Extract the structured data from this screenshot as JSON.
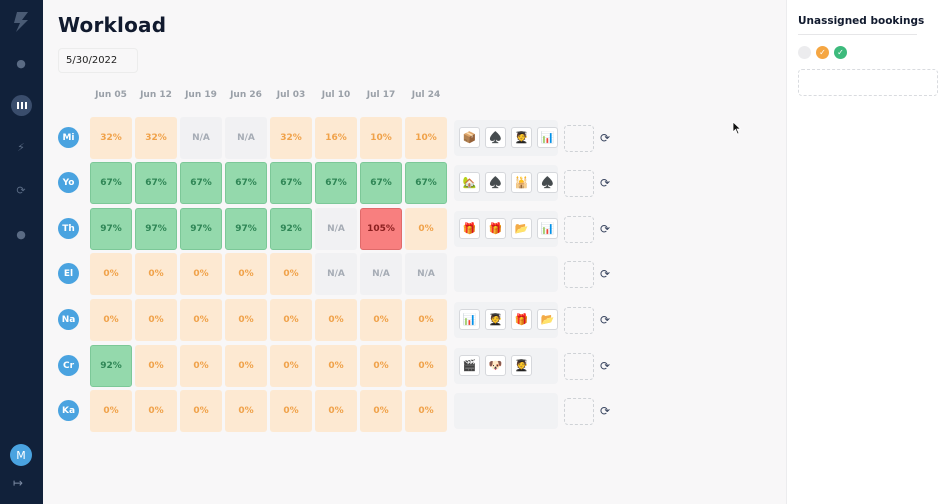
{
  "title": "Workload",
  "date": "5/30/2022",
  "weeks": [
    "Jun 05",
    "Jun 12",
    "Jun 19",
    "Jun 26",
    "Jul 03",
    "Jul 10",
    "Jul 17",
    "Jul 24"
  ],
  "rows": [
    {
      "initials": "Mi",
      "cells": [
        "32%",
        "32%",
        "N/A",
        "N/A",
        "32%",
        "16%",
        "10%",
        "10%"
      ],
      "status": [
        "orange",
        "orange",
        "gray",
        "gray",
        "orange",
        "orange",
        "orange",
        "orange"
      ],
      "bookings": [
        "📦",
        "♠️",
        "🧑‍🎓",
        "📊"
      ]
    },
    {
      "initials": "Yo",
      "cells": [
        "67%",
        "67%",
        "67%",
        "67%",
        "67%",
        "67%",
        "67%",
        "67%"
      ],
      "status": [
        "green",
        "green",
        "green",
        "green",
        "green",
        "green",
        "green",
        "green"
      ],
      "bookings": [
        "🏡",
        "♠️",
        "🕌",
        "♠️"
      ]
    },
    {
      "initials": "Th",
      "cells": [
        "97%",
        "97%",
        "97%",
        "97%",
        "92%",
        "N/A",
        "105%",
        "0%"
      ],
      "status": [
        "green",
        "green",
        "green",
        "green",
        "green",
        "gray",
        "red",
        "orange"
      ],
      "bookings": [
        "🎁",
        "🎁",
        "📂",
        "📊"
      ]
    },
    {
      "initials": "El",
      "cells": [
        "0%",
        "0%",
        "0%",
        "0%",
        "0%",
        "N/A",
        "N/A",
        "N/A"
      ],
      "status": [
        "orange",
        "orange",
        "orange",
        "orange",
        "orange",
        "gray",
        "gray",
        "gray"
      ],
      "bookings": []
    },
    {
      "initials": "Na",
      "cells": [
        "0%",
        "0%",
        "0%",
        "0%",
        "0%",
        "0%",
        "0%",
        "0%"
      ],
      "status": [
        "orange",
        "orange",
        "orange",
        "orange",
        "orange",
        "orange",
        "orange",
        "orange"
      ],
      "bookings": [
        "📊",
        "🧑‍🎓",
        "🎁",
        "📂"
      ]
    },
    {
      "initials": "Cr",
      "cells": [
        "92%",
        "0%",
        "0%",
        "0%",
        "0%",
        "0%",
        "0%",
        "0%"
      ],
      "status": [
        "green",
        "orange",
        "orange",
        "orange",
        "orange",
        "orange",
        "orange",
        "orange"
      ],
      "bookings": [
        "🎬",
        "🐶",
        "🧑‍🎓"
      ]
    },
    {
      "initials": "Ka",
      "cells": [
        "0%",
        "0%",
        "0%",
        "0%",
        "0%",
        "0%",
        "0%",
        "0%"
      ],
      "status": [
        "orange",
        "orange",
        "orange",
        "orange",
        "orange",
        "orange",
        "orange",
        "orange"
      ],
      "bookings": []
    }
  ],
  "panel": {
    "title": "Unassigned bookings",
    "filters": [
      {
        "color": "#ececee",
        "icon": ""
      },
      {
        "color": "#f5a642",
        "icon": "✓"
      },
      {
        "color": "#3dba7c",
        "icon": "✓"
      }
    ]
  },
  "user_initial": "M",
  "colors": {
    "sidebar": "#11213a",
    "accent": "#4aa3e0"
  }
}
